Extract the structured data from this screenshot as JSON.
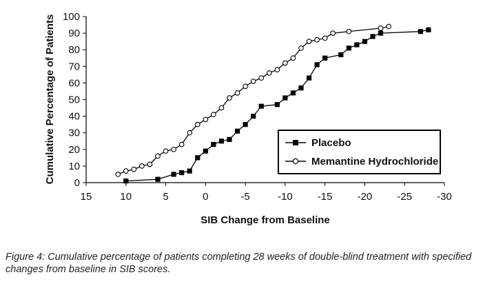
{
  "chart_data": {
    "type": "line",
    "xlabel": "SIB Change from Baseline",
    "ylabel": "Cumulative Percentage of Patients",
    "xlim": [
      15,
      -30
    ],
    "ylim": [
      0,
      100
    ],
    "x_ticks": [
      15,
      10,
      5,
      0,
      -5,
      -10,
      -15,
      -20,
      -25,
      -30
    ],
    "x_tick_labels": [
      "15",
      "10",
      "5",
      "0",
      "-5",
      "-10",
      "-15",
      "-20",
      "-25",
      "-30"
    ],
    "y_ticks": [
      0,
      10,
      20,
      30,
      40,
      50,
      60,
      70,
      80,
      90,
      100
    ],
    "y_tick_labels": [
      "0",
      "10",
      "20",
      "30",
      "40",
      "50",
      "60",
      "70",
      "80",
      "90",
      "100"
    ],
    "grid": false,
    "legend_position": "right",
    "series": [
      {
        "name": "Placebo",
        "marker": "filled-square",
        "color": "#000000",
        "points": [
          [
            10,
            1
          ],
          [
            6,
            2
          ],
          [
            4,
            5
          ],
          [
            3,
            6
          ],
          [
            2,
            7
          ],
          [
            1,
            15
          ],
          [
            0,
            19
          ],
          [
            -1,
            23
          ],
          [
            -2,
            25
          ],
          [
            -3,
            26
          ],
          [
            -4,
            31
          ],
          [
            -5,
            35
          ],
          [
            -6,
            40
          ],
          [
            -7,
            46
          ],
          [
            -9,
            47
          ],
          [
            -10,
            51
          ],
          [
            -11,
            54
          ],
          [
            -12,
            57
          ],
          [
            -13,
            63
          ],
          [
            -14,
            71
          ],
          [
            -15,
            75
          ],
          [
            -17,
            77
          ],
          [
            -18,
            81
          ],
          [
            -19,
            83
          ],
          [
            -20,
            85
          ],
          [
            -21,
            88
          ],
          [
            -22,
            90
          ],
          [
            -27,
            91
          ],
          [
            -28,
            92
          ]
        ]
      },
      {
        "name": "Memantine Hydrochloride",
        "marker": "open-circle",
        "color": "#000000",
        "points": [
          [
            11,
            5
          ],
          [
            10,
            7
          ],
          [
            9,
            8
          ],
          [
            8,
            10
          ],
          [
            7,
            11
          ],
          [
            6,
            16
          ],
          [
            5,
            19
          ],
          [
            4,
            20
          ],
          [
            3,
            23
          ],
          [
            2,
            30
          ],
          [
            1,
            35
          ],
          [
            0,
            38
          ],
          [
            -1,
            41
          ],
          [
            -2,
            45
          ],
          [
            -3,
            51
          ],
          [
            -4,
            54
          ],
          [
            -5,
            58
          ],
          [
            -6,
            61
          ],
          [
            -7,
            63
          ],
          [
            -8,
            66
          ],
          [
            -9,
            68
          ],
          [
            -10,
            72
          ],
          [
            -11,
            75
          ],
          [
            -12,
            81
          ],
          [
            -13,
            85
          ],
          [
            -14,
            86
          ],
          [
            -15,
            87
          ],
          [
            -16,
            90
          ],
          [
            -18,
            91
          ],
          [
            -22,
            93
          ],
          [
            -23,
            94
          ]
        ]
      }
    ]
  },
  "caption": "Figure 4: Cumulative percentage of patients completing 28 weeks of double-blind treatment with specified changes from baseline in SIB scores."
}
